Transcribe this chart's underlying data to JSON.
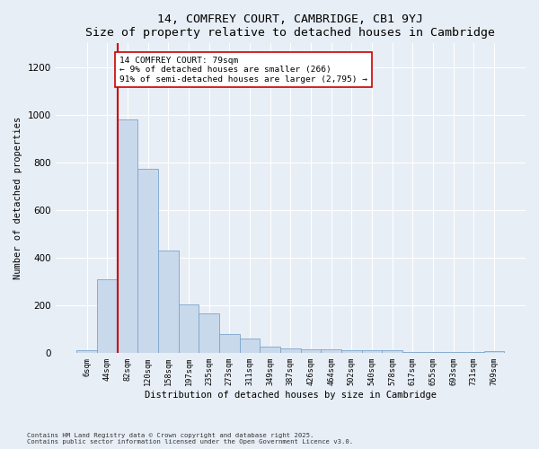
{
  "title1": "14, COMFREY COURT, CAMBRIDGE, CB1 9YJ",
  "title2": "Size of property relative to detached houses in Cambridge",
  "xlabel": "Distribution of detached houses by size in Cambridge",
  "ylabel": "Number of detached properties",
  "categories": [
    "6sqm",
    "44sqm",
    "82sqm",
    "120sqm",
    "158sqm",
    "197sqm",
    "235sqm",
    "273sqm",
    "311sqm",
    "349sqm",
    "387sqm",
    "426sqm",
    "464sqm",
    "502sqm",
    "540sqm",
    "578sqm",
    "617sqm",
    "655sqm",
    "693sqm",
    "731sqm",
    "769sqm"
  ],
  "values": [
    10,
    308,
    980,
    775,
    430,
    205,
    165,
    80,
    60,
    25,
    18,
    15,
    15,
    12,
    10,
    10,
    5,
    5,
    3,
    3,
    8
  ],
  "bar_color": "#c9d9ec",
  "bar_edge_color": "#7ba4c9",
  "red_line_x": 1.5,
  "annotation_text": "14 COMFREY COURT: 79sqm\n← 9% of detached houses are smaller (266)\n91% of semi-detached houses are larger (2,795) →",
  "annotation_box_color": "#ffffff",
  "annotation_box_edge": "#cc0000",
  "red_line_color": "#cc0000",
  "ylim": [
    0,
    1300
  ],
  "yticks": [
    0,
    200,
    400,
    600,
    800,
    1000,
    1200
  ],
  "footer1": "Contains HM Land Registry data © Crown copyright and database right 2025.",
  "footer2": "Contains public sector information licensed under the Open Government Licence v3.0.",
  "bg_color": "#e8eef5",
  "plot_bg_color": "#e8eef5",
  "grid_color": "#ffffff"
}
